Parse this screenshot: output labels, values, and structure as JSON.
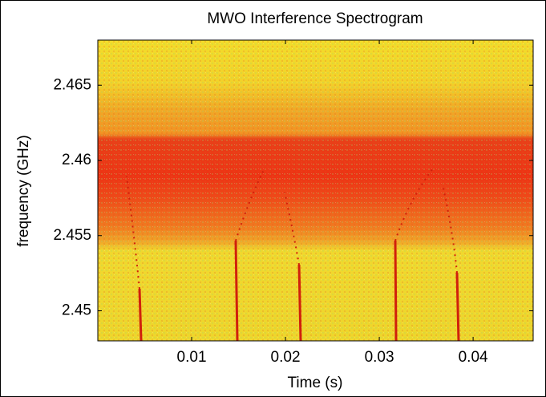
{
  "chart_data": {
    "type": "spectrogram",
    "title": "MWO Interference Spectrogram",
    "x_label": "Time (s)",
    "y_label": "frequency (GHz)",
    "xlim": [
      0,
      0.0464
    ],
    "xticks": [
      0.01,
      0.02,
      0.03,
      0.04
    ],
    "ylim": [
      2.448,
      2.468
    ],
    "yticks": [
      2.45,
      2.455,
      2.46,
      2.465
    ]
  }
}
